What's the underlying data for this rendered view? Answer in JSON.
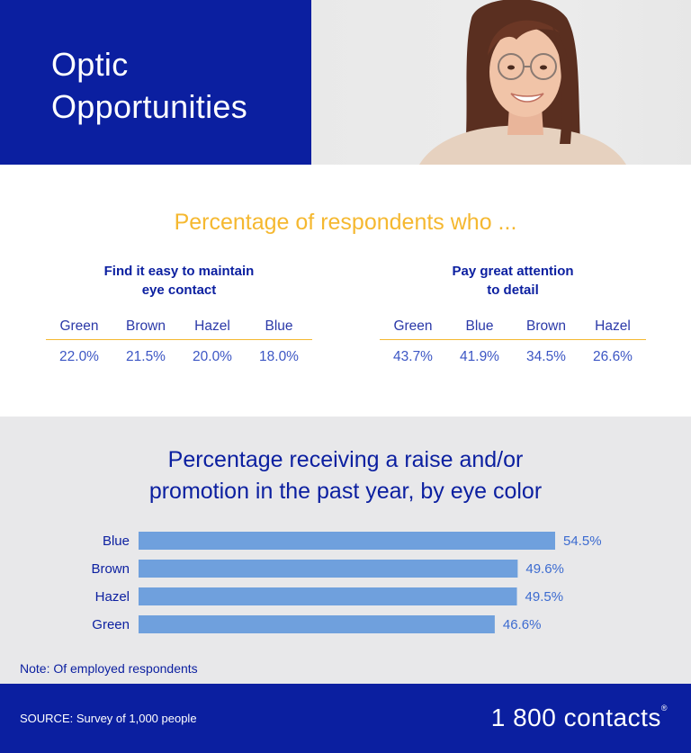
{
  "header": {
    "title_line1": "Optic",
    "title_line2": "Opportunities"
  },
  "respondents": {
    "heading": "Percentage of respondents who ...",
    "eye_contact": {
      "title_line1": "Find it easy to maintain",
      "title_line2": "eye contact",
      "columns": [
        "Green",
        "Brown",
        "Hazel",
        "Blue"
      ],
      "values": [
        "22.0%",
        "21.5%",
        "20.0%",
        "18.0%"
      ]
    },
    "attention": {
      "title_line1": "Pay great attention",
      "title_line2": "to detail",
      "columns": [
        "Green",
        "Blue",
        "Brown",
        "Hazel"
      ],
      "values": [
        "43.7%",
        "41.9%",
        "34.5%",
        "26.6%"
      ]
    }
  },
  "chart_data": {
    "type": "bar",
    "orientation": "horizontal",
    "title_line1": "Percentage receiving a raise and/or",
    "title_line2": "promotion in the past year, by eye color",
    "categories": [
      "Blue",
      "Brown",
      "Hazel",
      "Green"
    ],
    "values": [
      54.5,
      49.6,
      49.5,
      46.6
    ],
    "value_labels": [
      "54.5%",
      "49.6%",
      "49.5%",
      "46.6%"
    ],
    "bar_color": "#6fa0dd",
    "grid": false
  },
  "note": "Note: Of employed respondents",
  "footer": {
    "source": "SOURCE: Survey of 1,000 people",
    "brand": "1 800 contacts",
    "brand_mark": "®"
  },
  "colors": {
    "navy": "#0b1fa0",
    "gold": "#f5b830",
    "panel_gray": "#e8e8ea"
  }
}
